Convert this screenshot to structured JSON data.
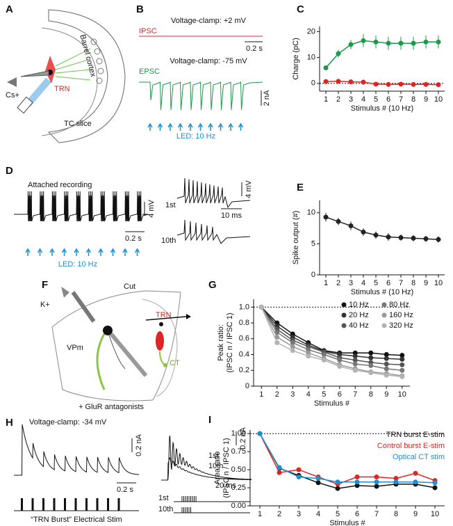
{
  "panels": {
    "letters": [
      "A",
      "B",
      "C",
      "D",
      "E",
      "F",
      "G",
      "H",
      "I"
    ],
    "a": {
      "labels": [
        "Barrel cortex",
        "Cs+",
        "TRN",
        "TC slice"
      ]
    },
    "b": {
      "titles": [
        "Voltage-clamp: +2 mV",
        "Voltage-clamp: -75 mV"
      ],
      "trace_labels": [
        "IPSC",
        "EPSC"
      ],
      "scale_time": "0.2 s",
      "scale_amp": "2 nA",
      "stim": "LED: 10 Hz"
    },
    "d": {
      "title": "Attached recording",
      "scale_amp": "4 mV",
      "scale_time": "0.2 s",
      "stim": "LED: 10 Hz",
      "inset_labels": [
        "1st",
        "10th"
      ],
      "inset_amp": "4 mV",
      "inset_time": "10 ms"
    },
    "f": {
      "labels": [
        "K+",
        "Cut",
        "VPm",
        "TRN",
        "CT",
        "+ GluR antagonists"
      ]
    },
    "h": {
      "title": "Voltage-clamp: -34 mV",
      "scale_amp": "0.2 nA",
      "scale_time": "0.2 s",
      "stim": "“TRN Burst” Electrical Stim",
      "inset_labels": [
        "1st",
        "10th"
      ],
      "inset_amp": "0.2 nA",
      "inset_time": "20 ms",
      "stim_labels": [
        "1st",
        "10th"
      ]
    }
  },
  "chart_data": [
    {
      "type": "line",
      "xlabel": "Stimulus # (10 Hz)",
      "ylabel": [
        "Charge (pC)"
      ],
      "x": [
        1,
        2,
        3,
        4,
        5,
        6,
        7,
        8,
        9,
        10
      ],
      "xlim": [
        0.5,
        10.5
      ],
      "xticks": [
        1,
        2,
        3,
        4,
        5,
        6,
        7,
        8,
        9,
        10
      ],
      "ylim": [
        -3,
        22
      ],
      "yticks": [
        0,
        10,
        20
      ],
      "ref_line": 0,
      "series": [
        {
          "name": "EPSC",
          "color": "#1a9a48",
          "values": [
            6,
            11.5,
            15,
            16.5,
            16,
            15.5,
            15.5,
            15.5,
            16,
            16
          ],
          "errors": [
            0.6,
            1.5,
            1.8,
            2.5,
            2.5,
            2.5,
            2.5,
            2.5,
            2.5,
            2.5
          ]
        },
        {
          "name": "IPSC",
          "color": "#e02424",
          "values": [
            0.7,
            0.8,
            0.6,
            0.5,
            -0.3,
            -0.4,
            -0.3,
            -0.4,
            -0.4,
            -0.5
          ],
          "errors": [
            0.3,
            0.3,
            0.3,
            0.3,
            0.3,
            0.3,
            0.3,
            0.3,
            0.3,
            0.3
          ]
        }
      ]
    },
    {
      "type": "line",
      "xlabel": "Stimulus # (10 Hz)",
      "ylabel": [
        "Spike output (#)"
      ],
      "x": [
        1,
        2,
        3,
        4,
        5,
        6,
        7,
        8,
        9,
        10
      ],
      "xlim": [
        0.5,
        10.5
      ],
      "xticks": [
        1,
        2,
        3,
        4,
        5,
        6,
        7,
        8,
        9,
        10
      ],
      "ylim": [
        0,
        12
      ],
      "yticks": [
        0,
        5,
        10
      ],
      "series": [
        {
          "name": "Spikes",
          "color": "#222222",
          "values": [
            9.3,
            8.6,
            7.9,
            6.9,
            6.4,
            6.1,
            6.0,
            5.9,
            5.8,
            5.7
          ],
          "errors": [
            0.7,
            0.6,
            0.7,
            0.6,
            0.6,
            0.6,
            0.5,
            0.5,
            0.5,
            0.5
          ]
        }
      ]
    },
    {
      "type": "line",
      "xlabel": "Stimulus #",
      "ylabel": [
        "Peak ratio:",
        "(IPSC n / IPSC 1)"
      ],
      "legend": "upper-right",
      "x": [
        1,
        2,
        3,
        4,
        5,
        6,
        7,
        8,
        9,
        10
      ],
      "xlim": [
        0.5,
        10.5
      ],
      "xticks": [
        1,
        2,
        3,
        4,
        5,
        6,
        7,
        8,
        9,
        10
      ],
      "ylim": [
        0,
        1.1
      ],
      "yticks": [
        0,
        0.2,
        0.4,
        0.6,
        0.8,
        {
          "value": 1,
          "label": "1.0"
        }
      ],
      "ref_line": 1,
      "series": [
        {
          "name": "10 Hz",
          "color": "#111111",
          "values": [
            1,
            0.8,
            0.66,
            0.55,
            0.45,
            0.42,
            0.42,
            0.42,
            0.4,
            0.39
          ]
        },
        {
          "name": "20 Hz",
          "color": "#333333",
          "values": [
            1,
            0.76,
            0.62,
            0.52,
            0.44,
            0.4,
            0.38,
            0.36,
            0.35,
            0.34
          ]
        },
        {
          "name": "40 Hz",
          "color": "#555555",
          "values": [
            1,
            0.72,
            0.58,
            0.5,
            0.43,
            0.36,
            0.33,
            0.3,
            0.28,
            0.27
          ]
        },
        {
          "name": "80 Hz",
          "color": "#777777",
          "values": [
            1,
            0.68,
            0.55,
            0.46,
            0.4,
            0.33,
            0.28,
            0.26,
            0.22,
            0.2
          ]
        },
        {
          "name": "160 Hz",
          "color": "#999999",
          "values": [
            1,
            0.62,
            0.5,
            0.42,
            0.35,
            0.27,
            0.22,
            0.18,
            0.16,
            0.13
          ]
        },
        {
          "name": "320 Hz",
          "color": "#b3b3b3",
          "values": [
            1,
            0.55,
            0.45,
            0.38,
            0.33,
            0.25,
            0.2,
            0.17,
            0.14,
            0.12
          ]
        }
      ]
    },
    {
      "type": "line",
      "xlabel": "Stimulus #",
      "ylabel": [
        "Area ratio",
        "(IPSC n / IPSC 1)"
      ],
      "legend": "upper-right",
      "x": [
        1,
        2,
        3,
        4,
        5,
        6,
        7,
        8,
        9,
        10
      ],
      "xlim": [
        0.5,
        10.5
      ],
      "xticks": [
        1,
        2,
        3,
        4,
        5,
        6,
        7,
        8,
        9,
        10
      ],
      "ylim": [
        0,
        1.05
      ],
      "yticks": [
        {
          "value": 0,
          "label": "0.00"
        },
        {
          "value": 0.25,
          "label": "0.25"
        },
        {
          "value": 0.5,
          "label": "0.50"
        },
        {
          "value": 0.75,
          "label": "0.75"
        },
        {
          "value": 1,
          "label": "1.00"
        }
      ],
      "ref_line": 1,
      "series": [
        {
          "name": "TRN burst E-stim",
          "color": "#111111",
          "values": [
            1,
            0.52,
            0.42,
            0.32,
            0.24,
            0.28,
            0.27,
            0.3,
            0.3,
            0.25
          ]
        },
        {
          "name": "Control burst E-stim",
          "color": "#e02424",
          "values": [
            1,
            0.46,
            0.5,
            0.4,
            0.3,
            0.4,
            0.4,
            0.38,
            0.45,
            0.35
          ]
        },
        {
          "name": "Optical CT stim",
          "color": "#1b8fd0",
          "values": [
            1,
            0.53,
            0.4,
            0.38,
            0.33,
            0.33,
            0.33,
            0.33,
            0.33,
            0.32
          ]
        }
      ]
    }
  ]
}
